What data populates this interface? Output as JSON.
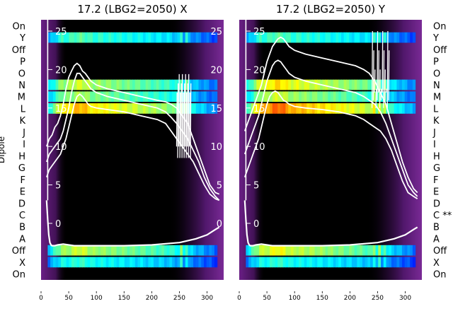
{
  "chart_data": [
    {
      "type": "heatmap",
      "title": "17.2 (LBG2=2050) X",
      "x_ticks": [
        0,
        50,
        100,
        150,
        200,
        250,
        300
      ],
      "xlim": [
        0,
        330
      ],
      "ylabel": "Dipole",
      "row_labels": [
        "On",
        "Y",
        "Off",
        "P",
        "O",
        "N",
        "M",
        "L",
        "K",
        "J",
        "I",
        "H",
        "G",
        "F",
        "E",
        "D",
        "C",
        "B",
        "A",
        "Off",
        "X",
        "On"
      ],
      "overlay_ticks": [
        0,
        5,
        10,
        15,
        20,
        25
      ],
      "overlay_ylim": [
        -3,
        27
      ],
      "active_bands": [
        {
          "label": "Y",
          "intensity": 0.45
        },
        {
          "label": "N",
          "intensity": 0.6
        },
        {
          "label": "M",
          "intensity": 0.55
        },
        {
          "label": "L",
          "intensity": 0.75
        },
        {
          "label": "Off",
          "intensity": 0.6
        },
        {
          "label": "X",
          "intensity": 0.4
        }
      ],
      "signal_window": [
        12,
        318
      ],
      "curves": [
        {
          "x": [
            10,
            15,
            20,
            25,
            30,
            35,
            40,
            45,
            50,
            55,
            60,
            65,
            70,
            75,
            80,
            85,
            90,
            100,
            120,
            150,
            180,
            210,
            225,
            235,
            245,
            255,
            265,
            275,
            285,
            295,
            305,
            315,
            322
          ],
          "y": [
            10,
            11,
            11.5,
            12.5,
            13,
            14,
            15.5,
            17.5,
            19,
            19.8,
            20.5,
            20.8,
            20.5,
            19.8,
            19.5,
            19,
            18.5,
            18,
            17.5,
            17,
            16.5,
            16,
            15.8,
            15.5,
            15,
            14,
            13,
            11,
            9,
            7,
            5,
            4,
            3.8
          ]
        },
        {
          "x": [
            10,
            15,
            20,
            25,
            30,
            35,
            40,
            45,
            50,
            55,
            60,
            65,
            70,
            75,
            80,
            85,
            90,
            100,
            120,
            150,
            180,
            210,
            225,
            235,
            245,
            255,
            265,
            275,
            285,
            295,
            305,
            315,
            322
          ],
          "y": [
            8,
            9,
            9.5,
            10,
            10.5,
            11,
            12,
            13.5,
            15,
            17,
            18.5,
            19.5,
            19.5,
            19,
            18.5,
            18,
            17.5,
            17,
            16.5,
            16,
            15.5,
            15,
            14.5,
            13.8,
            13,
            12,
            11,
            9.5,
            8,
            6,
            4.5,
            3.5,
            3
          ]
        },
        {
          "x": [
            10,
            15,
            20,
            25,
            30,
            35,
            40,
            45,
            50,
            55,
            60,
            65,
            70,
            75,
            80,
            85,
            90,
            100,
            120,
            150,
            180,
            210,
            225,
            235,
            245,
            255,
            265,
            275,
            285,
            295,
            305,
            315,
            322
          ],
          "y": [
            6,
            7,
            7.5,
            8,
            8.5,
            9,
            10,
            11,
            12.5,
            14,
            15.5,
            16.5,
            16.8,
            16.5,
            16,
            15.5,
            15.2,
            15,
            14.8,
            14.5,
            14,
            13.5,
            13,
            12,
            11,
            10,
            9,
            8,
            6.5,
            5,
            3.8,
            3.2,
            3
          ]
        },
        {
          "x": [
            10,
            12,
            14,
            16,
            18,
            20,
            25,
            30,
            40,
            50,
            60,
            80,
            100,
            150,
            200,
            250,
            280,
            300,
            315,
            322
          ],
          "y": [
            3,
            0.5,
            -1.5,
            -2.5,
            -2.8,
            -2.9,
            -2.9,
            -2.8,
            -2.7,
            -2.8,
            -2.9,
            -2.9,
            -2.9,
            -2.9,
            -2.8,
            -2.5,
            -2,
            -1.5,
            -0.8,
            -0.5
          ]
        }
      ],
      "spike_region": [
        245,
        270
      ]
    },
    {
      "type": "heatmap",
      "title": "17.2 (LBG2=2050) Y",
      "x_ticks": [
        0,
        50,
        100,
        150,
        200,
        250,
        300
      ],
      "xlim": [
        0,
        330
      ],
      "row_labels": [
        "On",
        "Y",
        "Off",
        "P",
        "O",
        "N",
        "M",
        "L",
        "K",
        "J",
        "I",
        "H",
        "G",
        "F",
        "E",
        "D",
        "C **",
        "B",
        "A",
        "Off",
        "X",
        "On"
      ],
      "overlay_ticks": [
        0,
        5,
        10,
        15,
        20,
        25
      ],
      "overlay_ylim": [
        -3,
        27
      ],
      "active_bands": [
        {
          "label": "Y",
          "intensity": 0.45
        },
        {
          "label": "N",
          "intensity": 0.7
        },
        {
          "label": "M",
          "intensity": 0.6
        },
        {
          "label": "L",
          "intensity": 0.85
        },
        {
          "label": "Off",
          "intensity": 0.65
        },
        {
          "label": "X",
          "intensity": 0.4
        }
      ],
      "signal_window": [
        12,
        318
      ],
      "curves": [
        {
          "x": [
            10,
            15,
            20,
            25,
            30,
            35,
            40,
            45,
            50,
            55,
            60,
            65,
            70,
            75,
            80,
            85,
            90,
            100,
            120,
            150,
            180,
            210,
            225,
            235,
            245,
            255,
            265,
            275,
            285,
            295,
            305,
            315,
            322
          ],
          "y": [
            12,
            13,
            14,
            15,
            16,
            17,
            18,
            19.5,
            21,
            22,
            23,
            23.5,
            24,
            24.2,
            24,
            23.5,
            23,
            22.5,
            22,
            21.5,
            21,
            20.5,
            20,
            19.5,
            18.5,
            17,
            15.5,
            13,
            10.5,
            8,
            6,
            4.5,
            4
          ]
        },
        {
          "x": [
            10,
            15,
            20,
            25,
            30,
            35,
            40,
            45,
            50,
            55,
            60,
            65,
            70,
            75,
            80,
            85,
            90,
            100,
            120,
            150,
            180,
            210,
            225,
            235,
            245,
            255,
            265,
            275,
            285,
            295,
            305,
            315,
            322
          ],
          "y": [
            9,
            10,
            11,
            12,
            13,
            14,
            15.5,
            17,
            18.5,
            19.5,
            20.5,
            21,
            21.2,
            21,
            20.5,
            20,
            19.5,
            19,
            18.5,
            18,
            17.5,
            17,
            16.5,
            16,
            15.5,
            14.5,
            13,
            11,
            9,
            7,
            5,
            4,
            3.5
          ]
        },
        {
          "x": [
            10,
            15,
            20,
            25,
            30,
            35,
            40,
            45,
            50,
            55,
            60,
            65,
            70,
            75,
            80,
            85,
            90,
            100,
            120,
            150,
            180,
            210,
            225,
            235,
            245,
            255,
            265,
            275,
            285,
            295,
            305,
            315,
            322
          ],
          "y": [
            6,
            7,
            8,
            9,
            10,
            11,
            12.5,
            14,
            15.5,
            16.5,
            17,
            17.2,
            17,
            16.5,
            16,
            15.8,
            15.5,
            15.2,
            15,
            14.8,
            14.5,
            14,
            13.5,
            13,
            12.5,
            12,
            11,
            9.5,
            7.5,
            5.5,
            4,
            3.5,
            3.2
          ]
        },
        {
          "x": [
            10,
            12,
            14,
            16,
            18,
            20,
            25,
            30,
            40,
            50,
            60,
            80,
            100,
            150,
            200,
            250,
            280,
            300,
            315,
            322
          ],
          "y": [
            3,
            0.5,
            -1.5,
            -2.5,
            -2.8,
            -2.9,
            -2.9,
            -2.8,
            -2.7,
            -2.8,
            -2.9,
            -2.9,
            -2.9,
            -2.9,
            -2.8,
            -2.5,
            -2,
            -1.5,
            -0.8,
            -0.5
          ]
        }
      ],
      "spike_region": [
        240,
        270
      ]
    }
  ]
}
